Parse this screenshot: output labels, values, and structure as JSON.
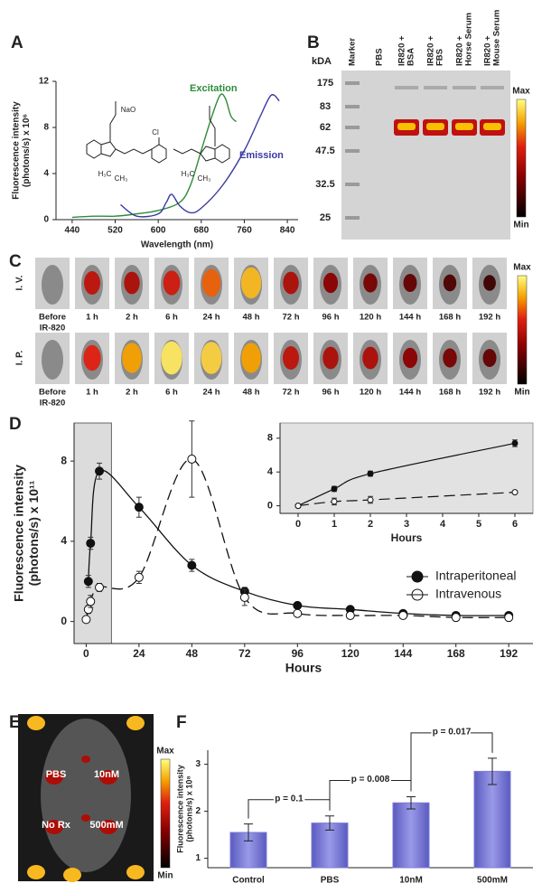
{
  "panel_labels": [
    "A",
    "B",
    "C",
    "D",
    "E",
    "F"
  ],
  "chart_data": [
    {
      "type": "line",
      "xlabel": "Wavelength (nm)",
      "ylabel": [
        "Fluorescence intensity",
        "(photons/s) x 10⁶"
      ],
      "xlim": [
        410,
        860
      ],
      "xticks": [
        440,
        520,
        600,
        680,
        760,
        840
      ],
      "ylim": [
        0,
        12
      ],
      "yticks": [
        0,
        4,
        8,
        12
      ],
      "structure_labels": [
        "NaO",
        "Cl",
        "H₃C",
        "CH₃",
        "H₃C",
        "CH₃"
      ],
      "series": [
        {
          "name": "Excitation",
          "color": "#2e8b3a",
          "line_style": "solid",
          "marker": "none",
          "x": [
            440,
            480,
            520,
            560,
            600,
            640,
            660,
            680,
            700,
            715,
            725,
            735,
            745
          ],
          "values": [
            0.2,
            0.3,
            0.3,
            0.5,
            0.8,
            1.5,
            3,
            6,
            9,
            10.8,
            10.5,
            9,
            8.5
          ]
        },
        {
          "name": "Emission",
          "color": "#3a3aa0",
          "line_style": "solid",
          "marker": "none",
          "x": [
            530,
            560,
            600,
            615,
            625,
            640,
            660,
            680,
            720,
            760,
            790,
            810,
            825
          ],
          "values": [
            1.3,
            0.3,
            0.5,
            1.5,
            2.2,
            1.2,
            0.6,
            1,
            3,
            6,
            9,
            10.8,
            10.3
          ]
        }
      ]
    },
    {
      "type": "line",
      "xlabel": "Hours",
      "ylabel": [
        "Fluorescence intensity",
        "(photons/s) x 10¹¹"
      ],
      "xlim": [
        -5.5,
        203
      ],
      "xticks": [
        0,
        24,
        48,
        72,
        96,
        120,
        144,
        168,
        192
      ],
      "ylim": [
        -1.1,
        9.9
      ],
      "yticks": [
        0,
        4,
        8
      ],
      "highlight_x": [
        -5.5,
        11.5
      ],
      "legend": "lower-right",
      "series": [
        {
          "name": "Intraperitoneal",
          "color": "#111111",
          "line_style": "solid",
          "marker": "filled",
          "x": [
            1,
            2,
            6,
            24,
            48,
            72,
            96,
            120,
            144,
            168,
            192
          ],
          "values": [
            2.0,
            3.9,
            7.5,
            5.7,
            2.8,
            1.5,
            0.8,
            0.6,
            0.4,
            0.3,
            0.3
          ],
          "errors": [
            0.3,
            0.3,
            0.4,
            0.5,
            0.3,
            0.2,
            0.1,
            0.1,
            0.1,
            0.1,
            0.1
          ]
        },
        {
          "name": "Intravenous",
          "color": "#111111",
          "line_style": "dashed",
          "marker": "open",
          "x": [
            0,
            1,
            2,
            6,
            24,
            48,
            72,
            96,
            120,
            144,
            168,
            192
          ],
          "values": [
            0.1,
            0.6,
            1.0,
            1.7,
            2.2,
            8.1,
            1.2,
            0.4,
            0.3,
            0.3,
            0.2,
            0.2
          ],
          "errors": [
            0.1,
            0.2,
            0.3,
            0.2,
            0.3,
            1.9,
            0.4,
            0.1,
            0.1,
            0.1,
            0.1,
            0.1
          ]
        }
      ]
    },
    {
      "type": "line",
      "xlabel": "Hours",
      "xlim": [
        -0.5,
        6.5
      ],
      "xticks": [
        0,
        1,
        2,
        3,
        4,
        5,
        6
      ],
      "ylim": [
        -0.9,
        9.8
      ],
      "yticks": [
        0,
        4,
        8
      ],
      "background": "#e2e2e2",
      "series": [
        {
          "name": "Intraperitoneal",
          "color": "#111111",
          "line_style": "solid",
          "marker": "filled",
          "x": [
            0,
            1,
            2,
            6
          ],
          "values": [
            0,
            2.0,
            3.8,
            7.4
          ],
          "errors": [
            0.1,
            0.3,
            0.3,
            0.4
          ]
        },
        {
          "name": "Intravenous",
          "color": "#111111",
          "line_style": "dashed",
          "marker": "open",
          "x": [
            0,
            1,
            2,
            6
          ],
          "values": [
            0,
            0.5,
            0.7,
            1.6
          ],
          "errors": [
            0.1,
            0.4,
            0.4,
            0.1
          ]
        }
      ]
    },
    {
      "type": "bar",
      "ylabel": [
        "Fluorescence intensity",
        "(photons/s) x 10⁸"
      ],
      "categories": [
        "Control",
        "PBS",
        "10nM",
        "500mM"
      ],
      "values": [
        1.55,
        1.75,
        2.18,
        2.85
      ],
      "errors": [
        0.18,
        0.15,
        0.13,
        0.28
      ],
      "color": "#7b7bd6",
      "ylim": [
        0.8,
        3.3
      ],
      "yticks": [
        1,
        2,
        3
      ],
      "annotations": [
        "p = 0.1",
        "p = 0.008",
        "p = 0.017"
      ]
    }
  ],
  "gel": {
    "unit": "kDA",
    "markers": [
      "175",
      "83",
      "62",
      "47.5",
      "32.5",
      "25"
    ],
    "lanes": [
      [
        "Marker"
      ],
      [
        "PBS"
      ],
      [
        "IR820 +",
        "BSA"
      ],
      [
        "IR820 +",
        "FBS"
      ],
      [
        "IR820 +",
        "Horse Serum"
      ],
      [
        "IR820 +",
        "Mouse Serum"
      ]
    ],
    "scale": [
      "Max",
      "Min"
    ]
  },
  "imaging": {
    "rows": [
      "I. V.",
      "I. P."
    ],
    "time_labels": [
      [
        "Before",
        "IR-820"
      ],
      [
        "1 h"
      ],
      [
        "2 h"
      ],
      [
        "6 h"
      ],
      [
        "24 h"
      ],
      [
        "48 h"
      ],
      [
        "72 h"
      ],
      [
        "96 h"
      ],
      [
        "120 h"
      ],
      [
        "144 h"
      ],
      [
        "168 h"
      ],
      [
        "192 h"
      ]
    ],
    "scale": [
      "Max",
      "Min"
    ]
  },
  "mouse": {
    "labels": [
      "PBS",
      "10nM",
      "No Rx",
      "500mM"
    ],
    "scale": [
      "Max",
      "Min"
    ]
  }
}
